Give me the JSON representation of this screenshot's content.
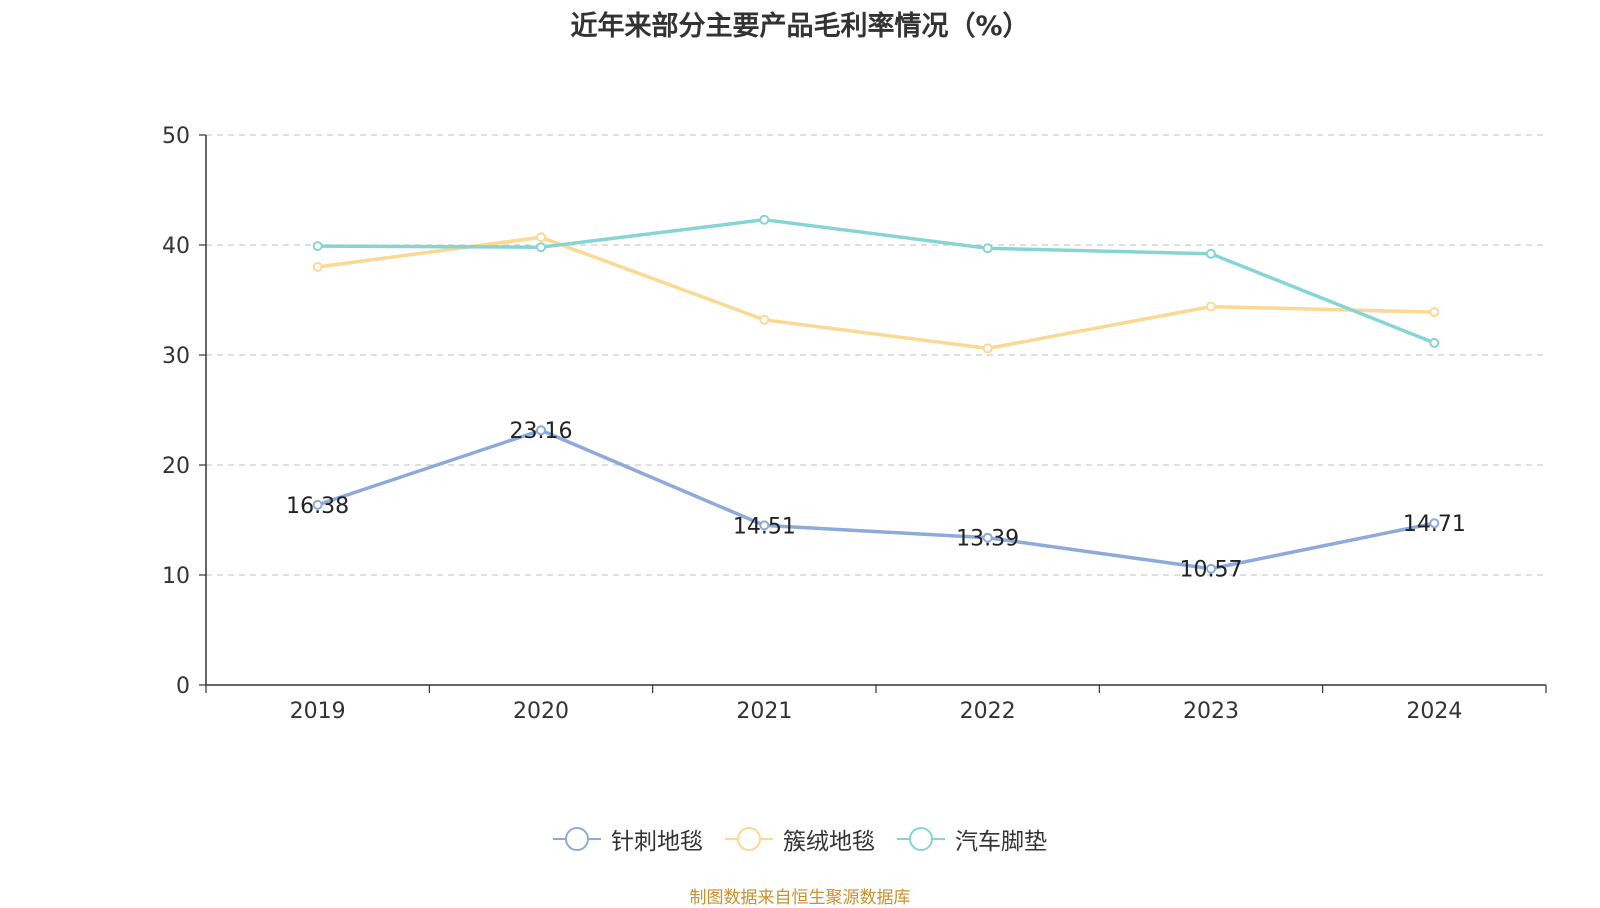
{
  "chart_data": {
    "type": "line",
    "title": "近年来部分主要产品毛利率情况（%）",
    "categories": [
      "2019",
      "2020",
      "2021",
      "2022",
      "2023",
      "2024"
    ],
    "ylim": [
      0,
      50
    ],
    "yticks": [
      0,
      10,
      20,
      30,
      40,
      50
    ],
    "grid": "horizontal-dashed",
    "legend_position": "bottom",
    "series": [
      {
        "name": "针刺地毯",
        "color": "#8eaadb",
        "values": [
          16.38,
          23.16,
          14.51,
          13.39,
          10.57,
          14.71
        ],
        "labels": [
          "16.38",
          "23.16",
          "14.51",
          "13.39",
          "10.57",
          "14.71"
        ]
      },
      {
        "name": "簇绒地毯",
        "color": "#fbd992",
        "values": [
          38.0,
          40.7,
          33.2,
          30.6,
          34.4,
          33.9
        ]
      },
      {
        "name": "汽车脚垫",
        "color": "#87d5d3",
        "values": [
          39.9,
          39.8,
          42.3,
          39.7,
          39.2,
          31.1
        ]
      }
    ]
  },
  "source": {
    "text": "制图数据来自恒生聚源数据库",
    "color": "#c8902e"
  }
}
